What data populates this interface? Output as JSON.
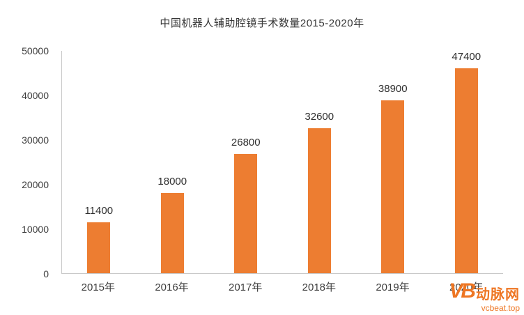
{
  "chart_data": {
    "type": "bar",
    "title": "中国机器人辅助腔镜手术数量2015-2020年",
    "categories": [
      "2015年",
      "2016年",
      "2017年",
      "2018年",
      "2019年",
      "2020年"
    ],
    "values": [
      11400,
      18000,
      26800,
      32600,
      38900,
      47400
    ],
    "xlabel": "",
    "ylabel": "",
    "ylim": [
      0,
      50000
    ],
    "y_ticks": [
      0,
      10000,
      20000,
      30000,
      40000,
      50000
    ],
    "grid": false,
    "legend": "none",
    "data_labels": true,
    "bar_color": "#ED7D31"
  },
  "watermark": {
    "logo": "VB",
    "name": "动脉网",
    "url": "vcbeat.top",
    "color": "#EE7623"
  }
}
